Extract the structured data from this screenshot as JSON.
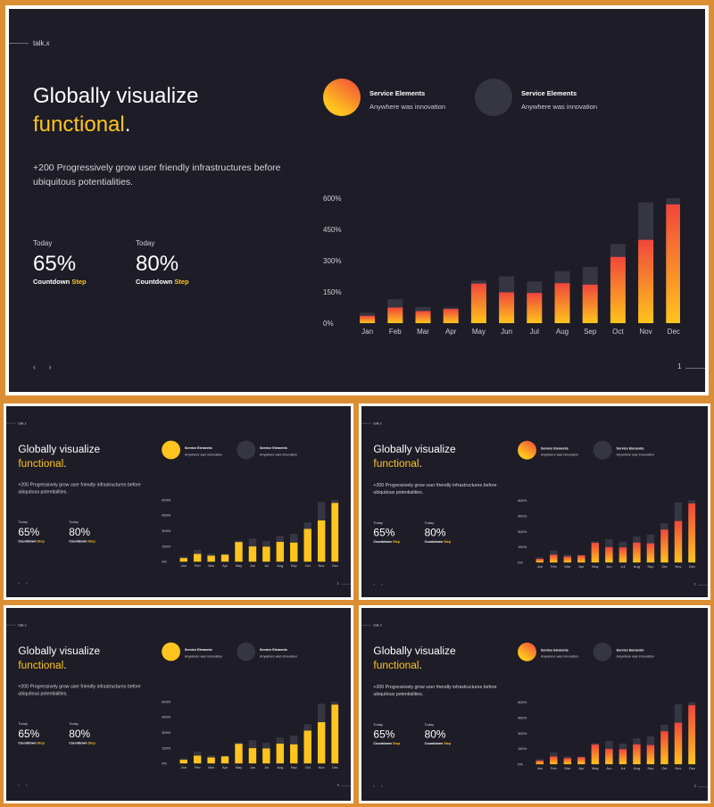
{
  "slide": {
    "brand": "talk.x",
    "title_line1": "Globally visualize",
    "title_line2_accent": "functional",
    "title_line2_end": ".",
    "description": "+200 Progressively grow user friendly infrastructures before ubiquitous potentialities.",
    "stats": [
      {
        "label": "Today",
        "value": "65%",
        "sub": "Countdown",
        "sub_accent": "Step"
      },
      {
        "label": "Today",
        "value": "80%",
        "sub": "Countdown",
        "sub_accent": "Step"
      }
    ],
    "nav": "‹ ›",
    "legend": [
      {
        "title": "Service Elements",
        "subtitle": "Anywhere was innovation"
      },
      {
        "title": "Service Elements",
        "subtitle": "Anywhere was innovation"
      }
    ]
  },
  "slides": [
    {
      "page": "1",
      "bar_style": "gradient",
      "circle_style": "gradient"
    },
    {
      "page": "1",
      "bar_style": "yellow",
      "circle_style": "yellow"
    },
    {
      "page": "1",
      "bar_style": "gradient",
      "circle_style": "gradient"
    },
    {
      "page": "2",
      "bar_style": "yellow",
      "circle_style": "yellow"
    },
    {
      "page": "2",
      "bar_style": "gradient",
      "circle_style": "gradient"
    }
  ],
  "colors": {
    "background": "#1d1c27",
    "accent": "#ffc41d",
    "gradient_top": "#f0463c",
    "gradient_bottom": "#ffc41d",
    "bar_back": "#363642",
    "frame": "#dc8e34"
  },
  "chart_data": {
    "type": "bar",
    "categories": [
      "Jan",
      "Feb",
      "Mar",
      "Apr",
      "May",
      "Jun",
      "Jul",
      "Aug",
      "Sep",
      "Oct",
      "Nov",
      "Dec"
    ],
    "ylim": [
      0,
      600
    ],
    "yticks": [
      "0%",
      "150%",
      "300%",
      "450%",
      "600%"
    ],
    "series": [
      {
        "values": [
          50,
          115,
          78,
          75,
          205,
          225,
          200,
          250,
          270,
          380,
          580,
          600
        ]
      },
      {
        "values": [
          35,
          75,
          58,
          68,
          190,
          148,
          145,
          192,
          185,
          318,
          400,
          570
        ]
      }
    ]
  }
}
